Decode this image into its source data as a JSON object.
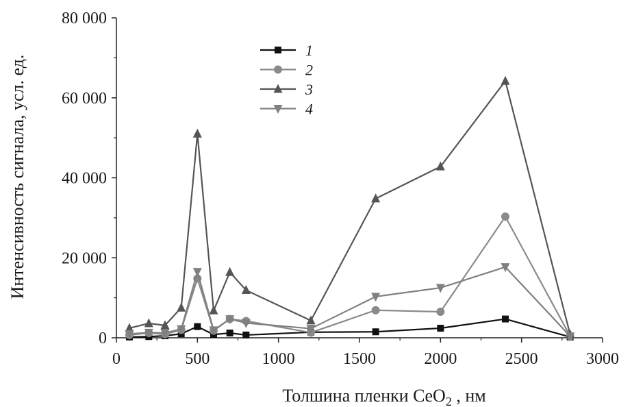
{
  "chart_data": {
    "type": "line",
    "xlabel": "Толшина пленки  CeO",
    "xlabel_subscript": "2",
    "xlabel_suffix": " , нм",
    "ylabel": "Интенсивность сигнала, усл. ед.",
    "xlim": [
      0,
      3000
    ],
    "ylim": [
      0,
      80000
    ],
    "xticks": [
      0,
      500,
      1000,
      1500,
      2000,
      2500,
      3000
    ],
    "xtick_labels": [
      "0",
      "500",
      "1000",
      "1500",
      "2000",
      "2500",
      "3000"
    ],
    "yticks": [
      0,
      20000,
      40000,
      60000,
      80000
    ],
    "ytick_labels": [
      "0",
      "20 000",
      "40 000",
      "60 000",
      "80 000"
    ],
    "grid": false,
    "legend_position": "top-left",
    "series": [
      {
        "name": "1",
        "marker": "square",
        "color": "#111111",
        "x": [
          80,
          200,
          300,
          400,
          500,
          600,
          700,
          800,
          1200,
          1600,
          2000,
          2400,
          2800
        ],
        "y": [
          200,
          300,
          500,
          1000,
          2800,
          800,
          1200,
          700,
          1400,
          1500,
          2400,
          4700,
          200
        ]
      },
      {
        "name": "2",
        "marker": "circle",
        "color": "#8a8a8a",
        "x": [
          80,
          200,
          300,
          400,
          500,
          600,
          700,
          800,
          1200,
          1600,
          2000,
          2400,
          2800
        ],
        "y": [
          700,
          1200,
          900,
          2000,
          14800,
          1800,
          4700,
          4200,
          1300,
          6900,
          6500,
          30300,
          400
        ]
      },
      {
        "name": "3",
        "marker": "triangle-up",
        "color": "#555555",
        "x": [
          80,
          200,
          300,
          400,
          500,
          600,
          700,
          800,
          1200,
          1600,
          2000,
          2400,
          2800
        ],
        "y": [
          2400,
          3600,
          3100,
          7500,
          51000,
          6800,
          16400,
          11900,
          4300,
          34800,
          42800,
          64200,
          800
        ]
      },
      {
        "name": "4",
        "marker": "triangle-down",
        "color": "#808080",
        "x": [
          80,
          200,
          300,
          400,
          500,
          600,
          700,
          800,
          1200,
          1600,
          2000,
          2400,
          2800
        ],
        "y": [
          1000,
          1300,
          1200,
          2200,
          16500,
          1900,
          4700,
          3700,
          2300,
          10300,
          12500,
          17700,
          400
        ]
      }
    ]
  }
}
